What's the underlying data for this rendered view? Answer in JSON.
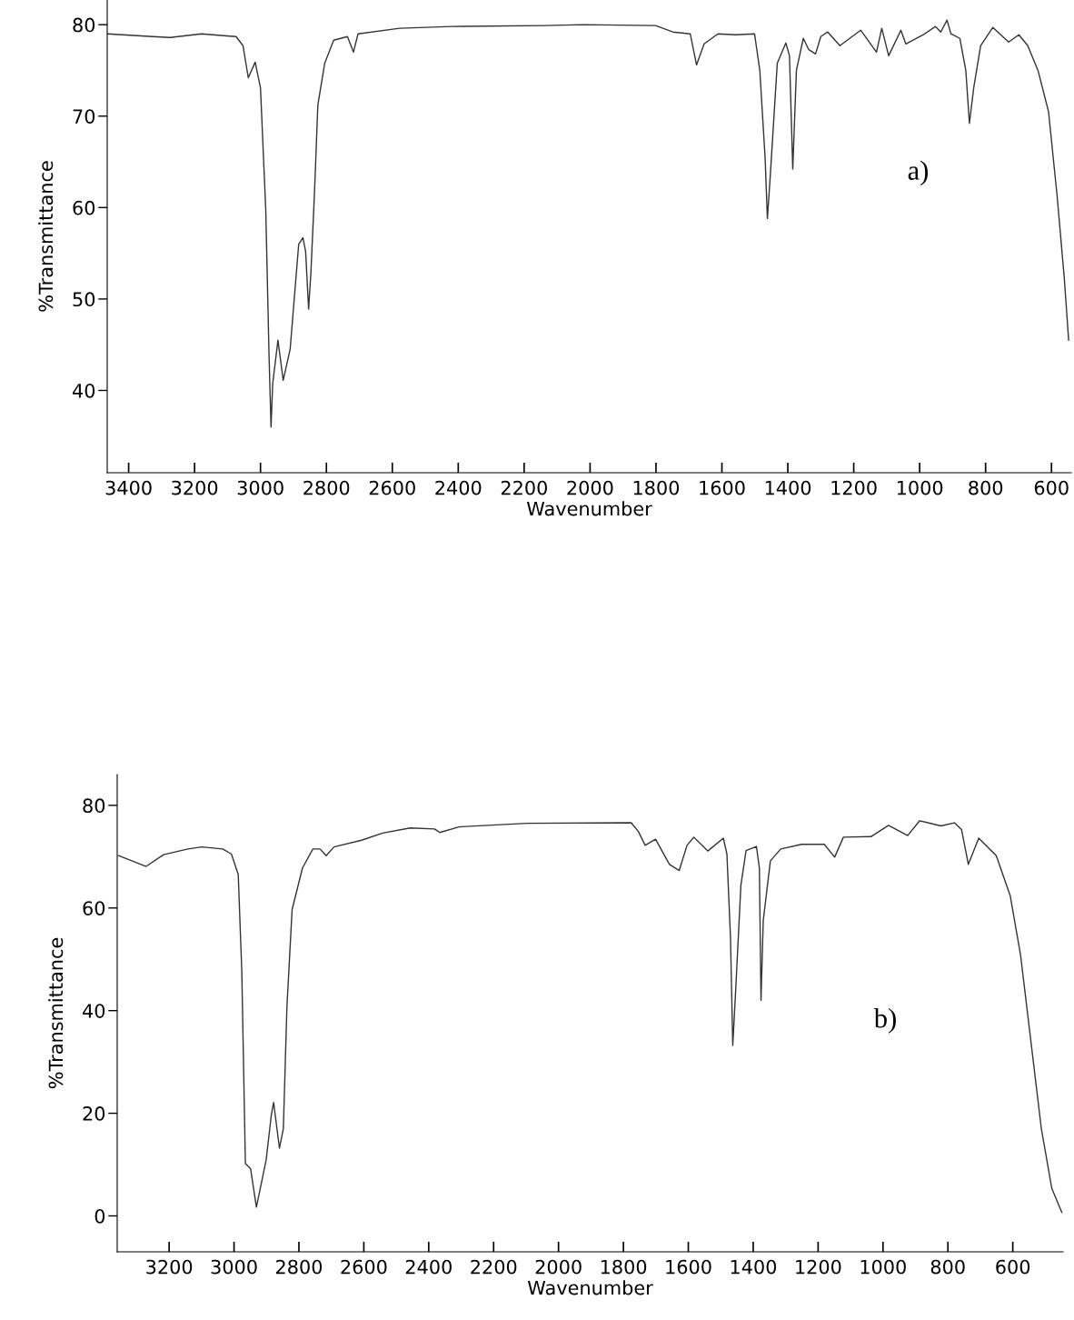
{
  "chart_data": [
    {
      "type": "line",
      "xlabel": "Wavenumber",
      "ylabel": "%Transmittance",
      "annotations": [
        "a)"
      ],
      "xlim": [
        3465,
        540
      ],
      "ylim": [
        31,
        82.7
      ],
      "xticks": [
        3400,
        3200,
        3000,
        2800,
        2600,
        2400,
        2200,
        2000,
        1800,
        1600,
        1400,
        1200,
        1000,
        800,
        600
      ],
      "yticks": [
        40,
        50,
        60,
        70,
        80
      ],
      "grid": false,
      "legend": false,
      "series": [
        {
          "color": "#333333",
          "x": [
            3464,
            3327,
            3274,
            3179,
            3074,
            3053,
            3037,
            3016,
            3000,
            2984,
            2974,
            2968,
            2963,
            2947,
            2931,
            2910,
            2884,
            2871,
            2863,
            2854,
            2847,
            2836,
            2826,
            2805,
            2778,
            2736,
            2718,
            2704,
            2578,
            2420,
            2137,
            2023,
            1801,
            1749,
            1696,
            1677,
            1654,
            1612,
            1559,
            1501,
            1485,
            1469,
            1462,
            1453,
            1432,
            1406,
            1395,
            1385,
            1374,
            1353,
            1337,
            1316,
            1300,
            1279,
            1242,
            1179,
            1131,
            1115,
            1094,
            1057,
            1042,
            989,
            952,
            936,
            917,
            905,
            878,
            860,
            849,
            836,
            815,
            778,
            730,
            699,
            672,
            641,
            609,
            583,
            561,
            548
          ],
          "values": [
            79.0,
            78.7,
            78.6,
            79.0,
            78.7,
            77.7,
            74.2,
            75.9,
            73.1,
            59.8,
            43.8,
            36.0,
            40.7,
            45.5,
            41.1,
            44.5,
            56.0,
            56.7,
            55.2,
            48.9,
            52.9,
            61.7,
            71.2,
            75.8,
            78.3,
            78.7,
            77.0,
            79.0,
            79.6,
            79.8,
            79.9,
            80.0,
            79.9,
            79.2,
            79.0,
            75.6,
            77.9,
            79.0,
            78.9,
            79.0,
            75.0,
            65.5,
            58.8,
            63.6,
            75.8,
            78.0,
            76.6,
            64.2,
            75.0,
            78.5,
            77.3,
            76.8,
            78.7,
            79.2,
            77.7,
            79.4,
            77.0,
            79.6,
            76.6,
            79.4,
            77.9,
            78.9,
            79.8,
            79.2,
            80.5,
            79.0,
            78.5,
            75.0,
            69.2,
            73.1,
            77.7,
            79.7,
            78.1,
            78.9,
            77.7,
            75.0,
            70.5,
            61.3,
            52.2,
            45.5
          ]
        }
      ]
    },
    {
      "type": "line",
      "xlabel": "Wavenumber",
      "ylabel": "%Transmittance",
      "annotations": [
        "b)"
      ],
      "xlim": [
        3360,
        445
      ],
      "ylim": [
        -7,
        86
      ],
      "xticks": [
        3200,
        3000,
        2800,
        2600,
        2400,
        2200,
        2000,
        1800,
        1600,
        1400,
        1200,
        1000,
        800,
        600
      ],
      "yticks": [
        0,
        20,
        40,
        60,
        80
      ],
      "grid": false,
      "legend": false,
      "series": [
        {
          "color": "#333333",
          "x": [
            3356,
            3271,
            3217,
            3142,
            3099,
            3035,
            3008,
            2987,
            2976,
            2965,
            2949,
            2931,
            2901,
            2885,
            2878,
            2860,
            2848,
            2837,
            2821,
            2789,
            2757,
            2735,
            2716,
            2692,
            2607,
            2542,
            2457,
            2382,
            2366,
            2307,
            2097,
            1776,
            1754,
            1733,
            1701,
            1658,
            1628,
            1604,
            1583,
            1540,
            1492,
            1481,
            1470,
            1463,
            1454,
            1438,
            1422,
            1390,
            1381,
            1376,
            1369,
            1347,
            1315,
            1251,
            1181,
            1149,
            1122,
            1037,
            983,
            924,
            887,
            822,
            780,
            758,
            737,
            705,
            651,
            608,
            576,
            544,
            512,
            480,
            449
          ],
          "values": [
            70.2,
            68.1,
            70.4,
            71.5,
            71.9,
            71.5,
            70.5,
            66.5,
            47.5,
            10.2,
            9.2,
            1.7,
            10.9,
            19.7,
            22.1,
            13.2,
            17.0,
            40.7,
            59.7,
            67.8,
            71.5,
            71.5,
            70.2,
            71.9,
            73.2,
            74.6,
            75.6,
            75.4,
            74.7,
            75.8,
            76.5,
            76.6,
            74.9,
            72.2,
            73.4,
            68.5,
            67.3,
            72.2,
            73.8,
            71.1,
            73.6,
            70.5,
            54.2,
            33.2,
            44.0,
            64.4,
            71.2,
            72.0,
            67.8,
            42.0,
            57.6,
            69.2,
            71.5,
            72.4,
            72.4,
            69.9,
            73.8,
            73.9,
            76.1,
            74.1,
            77.0,
            76.0,
            76.6,
            75.3,
            68.5,
            73.6,
            70.2,
            62.4,
            50.8,
            33.9,
            17.0,
            5.4,
            0.7
          ]
        }
      ]
    }
  ]
}
